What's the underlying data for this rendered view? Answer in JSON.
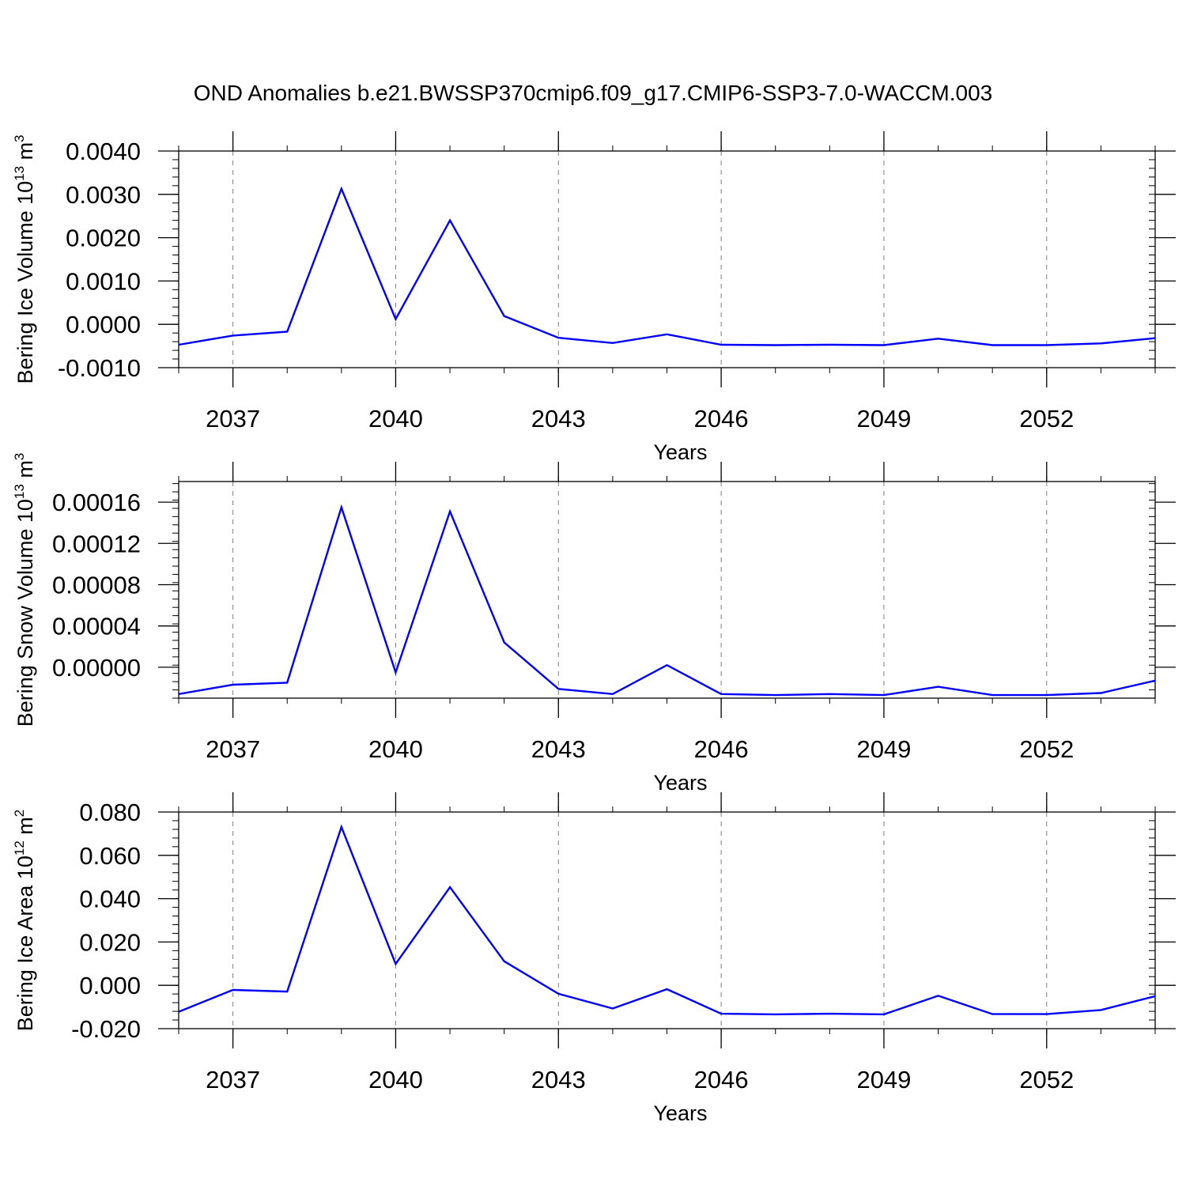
{
  "title": "OND Anomalies b.e21.BWSSP370cmip6.f09_g17.CMIP6-SSP3-7.0-WACCM.003",
  "colors": {
    "line": "#0000ff",
    "axis": "#000000",
    "grid": "#808080"
  },
  "chart_data": [
    {
      "type": "line",
      "ylabel": {
        "text": "Bering Ice Volume 10",
        "exp": "13",
        "unit": " m",
        "unit_exp": "3"
      },
      "xlabel": "Years",
      "x": [
        2036,
        2037,
        2038,
        2039,
        2040,
        2041,
        2042,
        2043,
        2044,
        2045,
        2046,
        2047,
        2048,
        2049,
        2050,
        2051,
        2052,
        2053,
        2054
      ],
      "y": [
        -0.00047,
        -0.00026,
        -0.00017,
        0.00313,
        0.00012,
        0.0024,
        0.00019,
        -0.00031,
        -0.00043,
        -0.00023,
        -0.00047,
        -0.00048,
        -0.00047,
        -0.00048,
        -0.00033,
        -0.00048,
        -0.00048,
        -0.00044,
        -0.00032
      ],
      "xlim": [
        2036,
        2054
      ],
      "ylim": [
        -0.001,
        0.004
      ],
      "yticks": [
        "0.0040",
        "0.0030",
        "0.0020",
        "0.0010",
        "0.0000",
        "-0.0010"
      ],
      "ytick_values": [
        0.004,
        0.003,
        0.002,
        0.001,
        0.0,
        -0.001
      ],
      "xticks": [
        "2037",
        "2040",
        "2043",
        "2046",
        "2049",
        "2052"
      ],
      "xtick_values": [
        2037,
        2040,
        2043,
        2046,
        2049,
        2052
      ],
      "grid": "dashed vertical at major x ticks"
    },
    {
      "type": "line",
      "ylabel": {
        "text": "Bering Snow Volume 10",
        "exp": "13",
        "unit": " m",
        "unit_exp": "3"
      },
      "xlabel": "Years",
      "x": [
        2036,
        2037,
        2038,
        2039,
        2040,
        2041,
        2042,
        2043,
        2044,
        2045,
        2046,
        2047,
        2048,
        2049,
        2050,
        2051,
        2052,
        2053,
        2054
      ],
      "y": [
        -2.6e-05,
        -1.7e-05,
        -1.5e-05,
        0.000155,
        -5e-06,
        0.000151,
        2.4e-05,
        -2.1e-05,
        -2.6e-05,
        2e-06,
        -2.6e-05,
        -2.7e-05,
        -2.6e-05,
        -2.7e-05,
        -1.9e-05,
        -2.7e-05,
        -2.7e-05,
        -2.5e-05,
        -1.3e-05
      ],
      "xlim": [
        2036,
        2054
      ],
      "ylim": [
        -3e-05,
        0.00018
      ],
      "yticks": [
        "0.00016",
        "0.00012",
        "0.00008",
        "0.00004",
        "0.00000"
      ],
      "ytick_values": [
        0.00016,
        0.00012,
        8e-05,
        4e-05,
        0.0
      ],
      "xticks": [
        "2037",
        "2040",
        "2043",
        "2046",
        "2049",
        "2052"
      ],
      "xtick_values": [
        2037,
        2040,
        2043,
        2046,
        2049,
        2052
      ],
      "grid": "dashed vertical at major x ticks"
    },
    {
      "type": "line",
      "ylabel": {
        "text": "Bering Ice Area 10",
        "exp": "12",
        "unit": " m",
        "unit_exp": "2"
      },
      "xlabel": "Years",
      "x": [
        2036,
        2037,
        2038,
        2039,
        2040,
        2041,
        2042,
        2043,
        2044,
        2045,
        2046,
        2047,
        2048,
        2049,
        2050,
        2051,
        2052,
        2053,
        2054
      ],
      "y": [
        -0.0122,
        -0.0021,
        -0.0029,
        0.0731,
        0.0099,
        0.0453,
        0.0111,
        -0.0039,
        -0.0107,
        -0.0018,
        -0.0131,
        -0.0134,
        -0.0131,
        -0.0134,
        -0.0048,
        -0.0133,
        -0.0133,
        -0.0114,
        -0.005
      ],
      "xlim": [
        2036,
        2054
      ],
      "ylim": [
        -0.02,
        0.08
      ],
      "yticks": [
        "0.080",
        "0.060",
        "0.040",
        "0.020",
        "0.000",
        "-0.020"
      ],
      "ytick_values": [
        0.08,
        0.06,
        0.04,
        0.02,
        0.0,
        -0.02
      ],
      "xticks": [
        "2037",
        "2040",
        "2043",
        "2046",
        "2049",
        "2052"
      ],
      "xtick_values": [
        2037,
        2040,
        2043,
        2046,
        2049,
        2052
      ],
      "grid": "dashed vertical at major x ticks"
    }
  ]
}
